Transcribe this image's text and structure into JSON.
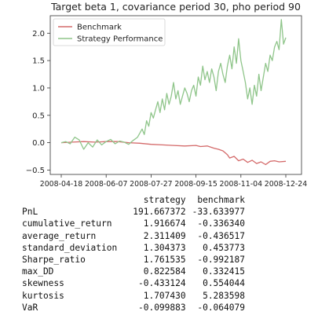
{
  "chart_data": {
    "type": "line",
    "title": "Target beta 1, covariance period 30, pho period 90",
    "x_tick_labels": [
      "2008-04-18",
      "2008-06-07",
      "2008-07-27",
      "2008-09-15",
      "2008-11-04",
      "2008-12-24"
    ],
    "y_tick_labels": [
      "−0.5",
      "0.0",
      "0.5",
      "1.0",
      "1.5",
      "2.0"
    ],
    "y_ticks": [
      -0.5,
      0.0,
      0.5,
      1.0,
      1.5,
      2.0
    ],
    "xlim": [
      0,
      1
    ],
    "ylim": [
      -0.58,
      2.32
    ],
    "legend_position": "top-left",
    "grid": false,
    "series": [
      {
        "name": "Benchmark",
        "color": "#d46a6a",
        "points": [
          [
            0.0,
            0.0
          ],
          [
            0.05,
            0.01
          ],
          [
            0.1,
            0.02
          ],
          [
            0.15,
            0.01
          ],
          [
            0.2,
            0.02
          ],
          [
            0.25,
            0.02
          ],
          [
            0.3,
            0.0
          ],
          [
            0.35,
            -0.01
          ],
          [
            0.4,
            -0.03
          ],
          [
            0.45,
            -0.04
          ],
          [
            0.5,
            -0.05
          ],
          [
            0.55,
            -0.06
          ],
          [
            0.6,
            -0.05
          ],
          [
            0.62,
            -0.07
          ],
          [
            0.65,
            -0.06
          ],
          [
            0.68,
            -0.1
          ],
          [
            0.7,
            -0.12
          ],
          [
            0.72,
            -0.15
          ],
          [
            0.74,
            -0.22
          ],
          [
            0.75,
            -0.28
          ],
          [
            0.77,
            -0.25
          ],
          [
            0.79,
            -0.33
          ],
          [
            0.81,
            -0.3
          ],
          [
            0.83,
            -0.36
          ],
          [
            0.85,
            -0.32
          ],
          [
            0.87,
            -0.38
          ],
          [
            0.89,
            -0.35
          ],
          [
            0.91,
            -0.4
          ],
          [
            0.93,
            -0.34
          ],
          [
            0.95,
            -0.33
          ],
          [
            0.97,
            -0.35
          ],
          [
            1.0,
            -0.34
          ]
        ]
      },
      {
        "name": "Strategy Performance",
        "color": "#8fc58a",
        "points": [
          [
            0.0,
            0.0
          ],
          [
            0.02,
            0.02
          ],
          [
            0.04,
            -0.02
          ],
          [
            0.06,
            0.1
          ],
          [
            0.08,
            0.05
          ],
          [
            0.1,
            -0.12
          ],
          [
            0.12,
            0.0
          ],
          [
            0.14,
            -0.08
          ],
          [
            0.16,
            0.05
          ],
          [
            0.18,
            -0.04
          ],
          [
            0.2,
            0.02
          ],
          [
            0.22,
            0.06
          ],
          [
            0.24,
            -0.02
          ],
          [
            0.26,
            0.03
          ],
          [
            0.28,
            0.01
          ],
          [
            0.3,
            -0.03
          ],
          [
            0.32,
            0.04
          ],
          [
            0.34,
            0.1
          ],
          [
            0.36,
            0.25
          ],
          [
            0.37,
            0.15
          ],
          [
            0.38,
            0.4
          ],
          [
            0.39,
            0.3
          ],
          [
            0.4,
            0.55
          ],
          [
            0.41,
            0.45
          ],
          [
            0.42,
            0.6
          ],
          [
            0.43,
            0.75
          ],
          [
            0.44,
            0.55
          ],
          [
            0.45,
            0.8
          ],
          [
            0.46,
            0.6
          ],
          [
            0.47,
            0.9
          ],
          [
            0.48,
            0.7
          ],
          [
            0.49,
            0.85
          ],
          [
            0.5,
            1.1
          ],
          [
            0.51,
            0.8
          ],
          [
            0.52,
            0.95
          ],
          [
            0.53,
            0.7
          ],
          [
            0.54,
            0.85
          ],
          [
            0.55,
            1.0
          ],
          [
            0.56,
            0.9
          ],
          [
            0.57,
            0.75
          ],
          [
            0.58,
            0.95
          ],
          [
            0.59,
            1.05
          ],
          [
            0.6,
            0.85
          ],
          [
            0.61,
            1.2
          ],
          [
            0.62,
            1.05
          ],
          [
            0.63,
            1.4
          ],
          [
            0.64,
            1.15
          ],
          [
            0.65,
            1.3
          ],
          [
            0.66,
            1.1
          ],
          [
            0.67,
            1.35
          ],
          [
            0.68,
            1.2
          ],
          [
            0.69,
            0.95
          ],
          [
            0.7,
            1.3
          ],
          [
            0.71,
            1.45
          ],
          [
            0.72,
            1.25
          ],
          [
            0.73,
            1.1
          ],
          [
            0.74,
            1.4
          ],
          [
            0.75,
            1.6
          ],
          [
            0.76,
            1.35
          ],
          [
            0.77,
            1.75
          ],
          [
            0.78,
            1.45
          ],
          [
            0.79,
            1.9
          ],
          [
            0.8,
            1.5
          ],
          [
            0.81,
            1.3
          ],
          [
            0.82,
            1.1
          ],
          [
            0.83,
            0.8
          ],
          [
            0.84,
            1.0
          ],
          [
            0.85,
            0.7
          ],
          [
            0.86,
            1.05
          ],
          [
            0.87,
            0.85
          ],
          [
            0.88,
            1.25
          ],
          [
            0.89,
            0.95
          ],
          [
            0.9,
            1.2
          ],
          [
            0.91,
            1.45
          ],
          [
            0.92,
            1.3
          ],
          [
            0.93,
            1.6
          ],
          [
            0.94,
            1.5
          ],
          [
            0.95,
            1.75
          ],
          [
            0.96,
            1.85
          ],
          [
            0.97,
            1.7
          ],
          [
            0.98,
            2.25
          ],
          [
            0.99,
            1.8
          ],
          [
            1.0,
            1.92
          ]
        ]
      }
    ]
  },
  "stats_table": {
    "headers": [
      "strategy",
      "benchmark"
    ],
    "rows": [
      {
        "label": "PnL",
        "strategy": "191.667372",
        "benchmark": "-33.633977"
      },
      {
        "label": "cumulative_return",
        "strategy": "1.916674",
        "benchmark": "-0.336340"
      },
      {
        "label": "average_return",
        "strategy": "2.311409",
        "benchmark": "-0.436517"
      },
      {
        "label": "standard_deviation",
        "strategy": "1.304373",
        "benchmark": "0.453773"
      },
      {
        "label": "Sharpe_ratio",
        "strategy": "1.761535",
        "benchmark": "-0.992187"
      },
      {
        "label": "max_DD",
        "strategy": "0.822584",
        "benchmark": "0.332415"
      },
      {
        "label": "skewness",
        "strategy": "-0.433124",
        "benchmark": "0.554044"
      },
      {
        "label": "kurtosis",
        "strategy": "1.707430",
        "benchmark": "5.283598"
      },
      {
        "label": "VaR",
        "strategy": "-0.099883",
        "benchmark": "-0.064079"
      }
    ]
  }
}
